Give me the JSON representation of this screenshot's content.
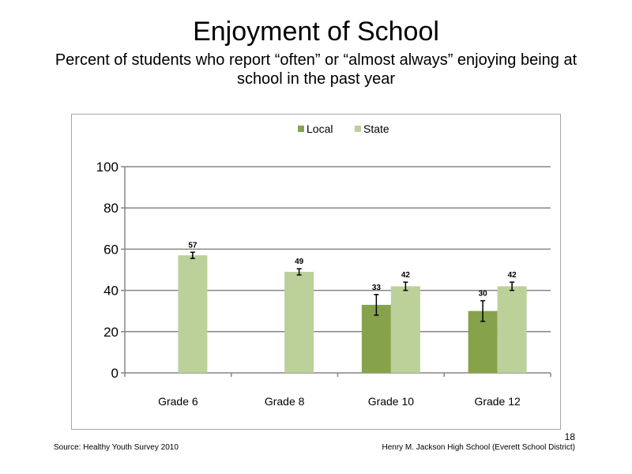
{
  "slide": {
    "page_number": "18",
    "source": "Source: Healthy Youth Survey 2010",
    "school": "Henry M. Jackson High School (Everett School District)"
  },
  "chart_data": {
    "type": "bar",
    "title": "Enjoyment of School",
    "subtitle": "Percent of students who report “often” or “almost always” enjoying being at school in the past year",
    "categories": [
      "Grade 6",
      "Grade 8",
      "Grade 10",
      "Grade 12"
    ],
    "series": [
      {
        "name": "Local",
        "color": "#86a34b",
        "values": [
          null,
          null,
          33,
          30
        ],
        "labels": [
          "",
          "",
          "33",
          "30"
        ],
        "error_low": [
          null,
          null,
          28,
          25
        ],
        "error_high": [
          null,
          null,
          38,
          35
        ]
      },
      {
        "name": "State",
        "color": "#bcd09a",
        "values": [
          57,
          49,
          42,
          42
        ],
        "labels": [
          "57",
          "49",
          "42",
          "42"
        ],
        "error_low": [
          55.5,
          47.5,
          40,
          40
        ],
        "error_high": [
          58.5,
          50.5,
          44,
          44
        ]
      }
    ],
    "ylim": [
      0,
      100
    ],
    "yticks": [
      0,
      20,
      40,
      60,
      80,
      100
    ],
    "grid": true,
    "legend": "top-center",
    "xlabel": "",
    "ylabel": ""
  }
}
